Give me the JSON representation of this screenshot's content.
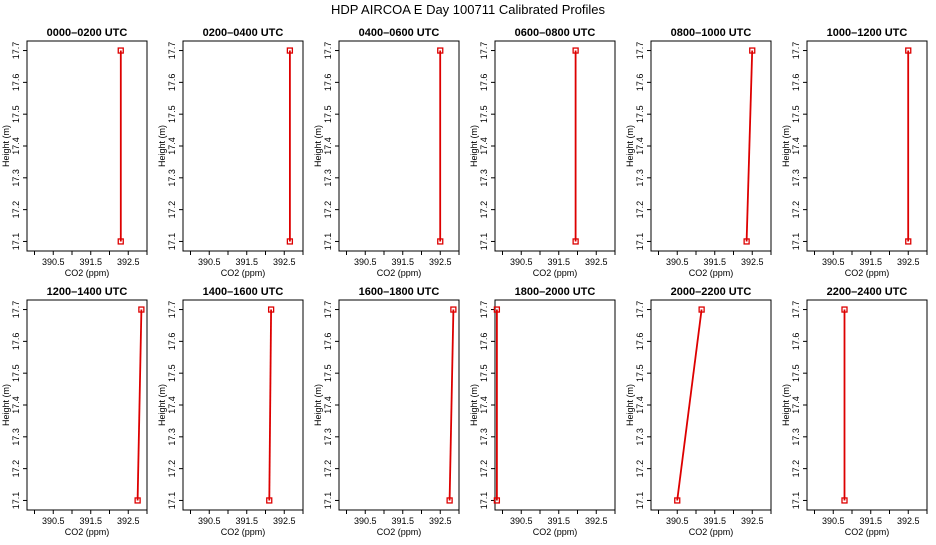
{
  "title": "HDP AIRCOA E  Day 100711  Calibrated Profiles",
  "style": {
    "line_color": "#dd0000",
    "marker_color": "#dd0000",
    "axis_color": "#000000"
  },
  "chart_data": [
    {
      "type": "line",
      "title": "0000–0200 UTC",
      "xlabel": "CO2 (ppm)",
      "ylabel": "Height (m)",
      "xlim": [
        389.8,
        393.0
      ],
      "ylim": [
        17.07,
        17.73
      ],
      "xticks": [
        "390.5",
        "391.5",
        "392.5"
      ],
      "xtick_values": [
        390.5,
        391.5,
        392.5
      ],
      "yticks": [
        "17.1",
        "17.2",
        "17.3",
        "17.4",
        "17.5",
        "17.6",
        "17.7"
      ],
      "ytick_values": [
        17.1,
        17.2,
        17.3,
        17.4,
        17.5,
        17.6,
        17.7
      ],
      "series": [
        {
          "x": [
            392.3,
            392.3
          ],
          "y": [
            17.1,
            17.7
          ]
        }
      ],
      "grid": false
    },
    {
      "type": "line",
      "title": "0200–0400 UTC",
      "xlabel": "CO2 (ppm)",
      "ylabel": "Height (m)",
      "xlim": [
        389.8,
        393.0
      ],
      "ylim": [
        17.07,
        17.73
      ],
      "xticks": [
        "390.5",
        "391.5",
        "392.5"
      ],
      "xtick_values": [
        390.5,
        391.5,
        392.5
      ],
      "yticks": [
        "17.1",
        "17.2",
        "17.3",
        "17.4",
        "17.5",
        "17.6",
        "17.7"
      ],
      "ytick_values": [
        17.1,
        17.2,
        17.3,
        17.4,
        17.5,
        17.6,
        17.7
      ],
      "series": [
        {
          "x": [
            392.65,
            392.65
          ],
          "y": [
            17.1,
            17.7
          ]
        }
      ],
      "grid": false
    },
    {
      "type": "line",
      "title": "0400–0600 UTC",
      "xlabel": "CO2 (ppm)",
      "ylabel": "Height (m)",
      "xlim": [
        389.8,
        393.0
      ],
      "ylim": [
        17.07,
        17.73
      ],
      "xticks": [
        "390.5",
        "391.5",
        "392.5"
      ],
      "xtick_values": [
        390.5,
        391.5,
        392.5
      ],
      "yticks": [
        "17.1",
        "17.2",
        "17.3",
        "17.4",
        "17.5",
        "17.6",
        "17.7"
      ],
      "ytick_values": [
        17.1,
        17.2,
        17.3,
        17.4,
        17.5,
        17.6,
        17.7
      ],
      "series": [
        {
          "x": [
            392.5,
            392.5
          ],
          "y": [
            17.1,
            17.7
          ]
        }
      ],
      "grid": false
    },
    {
      "type": "line",
      "title": "0600–0800 UTC",
      "xlabel": "CO2 (ppm)",
      "ylabel": "Height (m)",
      "xlim": [
        389.8,
        393.0
      ],
      "ylim": [
        17.07,
        17.73
      ],
      "xticks": [
        "390.5",
        "391.5",
        "392.5"
      ],
      "xtick_values": [
        390.5,
        391.5,
        392.5
      ],
      "yticks": [
        "17.1",
        "17.2",
        "17.3",
        "17.4",
        "17.5",
        "17.6",
        "17.7"
      ],
      "ytick_values": [
        17.1,
        17.2,
        17.3,
        17.4,
        17.5,
        17.6,
        17.7
      ],
      "series": [
        {
          "x": [
            391.95,
            391.95
          ],
          "y": [
            17.1,
            17.7
          ]
        }
      ],
      "grid": false
    },
    {
      "type": "line",
      "title": "0800–1000 UTC",
      "xlabel": "CO2 (ppm)",
      "ylabel": "Height (m)",
      "xlim": [
        389.8,
        393.0
      ],
      "ylim": [
        17.07,
        17.73
      ],
      "xticks": [
        "390.5",
        "391.5",
        "392.5"
      ],
      "xtick_values": [
        390.5,
        391.5,
        392.5
      ],
      "yticks": [
        "17.1",
        "17.2",
        "17.3",
        "17.4",
        "17.5",
        "17.6",
        "17.7"
      ],
      "ytick_values": [
        17.1,
        17.2,
        17.3,
        17.4,
        17.5,
        17.6,
        17.7
      ],
      "series": [
        {
          "x": [
            392.35,
            392.5
          ],
          "y": [
            17.1,
            17.7
          ]
        }
      ],
      "grid": false
    },
    {
      "type": "line",
      "title": "1000–1200 UTC",
      "xlabel": "CO2 (ppm)",
      "ylabel": "Height (m)",
      "xlim": [
        389.8,
        393.0
      ],
      "ylim": [
        17.07,
        17.73
      ],
      "xticks": [
        "390.5",
        "391.5",
        "392.5"
      ],
      "xtick_values": [
        390.5,
        391.5,
        392.5
      ],
      "yticks": [
        "17.1",
        "17.2",
        "17.3",
        "17.4",
        "17.5",
        "17.6",
        "17.7"
      ],
      "ytick_values": [
        17.1,
        17.2,
        17.3,
        17.4,
        17.5,
        17.6,
        17.7
      ],
      "series": [
        {
          "x": [
            392.5,
            392.5
          ],
          "y": [
            17.1,
            17.7
          ]
        }
      ],
      "grid": false
    },
    {
      "type": "line",
      "title": "1200–1400 UTC",
      "xlabel": "CO2 (ppm)",
      "ylabel": "Height (m)",
      "xlim": [
        389.8,
        393.0
      ],
      "ylim": [
        17.07,
        17.73
      ],
      "xticks": [
        "390.5",
        "391.5",
        "392.5"
      ],
      "xtick_values": [
        390.5,
        391.5,
        392.5
      ],
      "yticks": [
        "17.1",
        "17.2",
        "17.3",
        "17.4",
        "17.5",
        "17.6",
        "17.7"
      ],
      "ytick_values": [
        17.1,
        17.2,
        17.3,
        17.4,
        17.5,
        17.6,
        17.7
      ],
      "series": [
        {
          "x": [
            392.75,
            392.85
          ],
          "y": [
            17.1,
            17.7
          ]
        }
      ],
      "grid": false
    },
    {
      "type": "line",
      "title": "1400–1600 UTC",
      "xlabel": "CO2 (ppm)",
      "ylabel": "Height (m)",
      "xlim": [
        389.8,
        393.0
      ],
      "ylim": [
        17.07,
        17.73
      ],
      "xticks": [
        "390.5",
        "391.5",
        "392.5"
      ],
      "xtick_values": [
        390.5,
        391.5,
        392.5
      ],
      "yticks": [
        "17.1",
        "17.2",
        "17.3",
        "17.4",
        "17.5",
        "17.6",
        "17.7"
      ],
      "ytick_values": [
        17.1,
        17.2,
        17.3,
        17.4,
        17.5,
        17.6,
        17.7
      ],
      "series": [
        {
          "x": [
            392.1,
            392.15
          ],
          "y": [
            17.1,
            17.7
          ]
        }
      ],
      "grid": false
    },
    {
      "type": "line",
      "title": "1600–1800 UTC",
      "xlabel": "CO2 (ppm)",
      "ylabel": "Height (m)",
      "xlim": [
        389.8,
        393.0
      ],
      "ylim": [
        17.07,
        17.73
      ],
      "xticks": [
        "390.5",
        "391.5",
        "392.5"
      ],
      "xtick_values": [
        390.5,
        391.5,
        392.5
      ],
      "yticks": [
        "17.1",
        "17.2",
        "17.3",
        "17.4",
        "17.5",
        "17.6",
        "17.7"
      ],
      "ytick_values": [
        17.1,
        17.2,
        17.3,
        17.4,
        17.5,
        17.6,
        17.7
      ],
      "series": [
        {
          "x": [
            392.75,
            392.85
          ],
          "y": [
            17.1,
            17.7
          ]
        }
      ],
      "grid": false
    },
    {
      "type": "line",
      "title": "1800–2000 UTC",
      "xlabel": "CO2 (ppm)",
      "ylabel": "Height (m)",
      "xlim": [
        389.8,
        393.0
      ],
      "ylim": [
        17.07,
        17.73
      ],
      "xticks": [
        "390.5",
        "391.5",
        "392.5"
      ],
      "xtick_values": [
        390.5,
        391.5,
        392.5
      ],
      "yticks": [
        "17.1",
        "17.2",
        "17.3",
        "17.4",
        "17.5",
        "17.6",
        "17.7"
      ],
      "ytick_values": [
        17.1,
        17.2,
        17.3,
        17.4,
        17.5,
        17.6,
        17.7
      ],
      "series": [
        {
          "x": [
            389.85,
            389.85
          ],
          "y": [
            17.1,
            17.7
          ]
        }
      ],
      "grid": false
    },
    {
      "type": "line",
      "title": "2000–2200 UTC",
      "xlabel": "CO2 (ppm)",
      "ylabel": "Height (m)",
      "xlim": [
        389.8,
        393.0
      ],
      "ylim": [
        17.07,
        17.73
      ],
      "xticks": [
        "390.5",
        "391.5",
        "392.5"
      ],
      "xtick_values": [
        390.5,
        391.5,
        392.5
      ],
      "yticks": [
        "17.1",
        "17.2",
        "17.3",
        "17.4",
        "17.5",
        "17.6",
        "17.7"
      ],
      "ytick_values": [
        17.1,
        17.2,
        17.3,
        17.4,
        17.5,
        17.6,
        17.7
      ],
      "series": [
        {
          "x": [
            390.5,
            391.15
          ],
          "y": [
            17.1,
            17.7
          ]
        }
      ],
      "grid": false
    },
    {
      "type": "line",
      "title": "2200–2400 UTC",
      "xlabel": "CO2 (ppm)",
      "ylabel": "Height (m)",
      "xlim": [
        389.8,
        393.0
      ],
      "ylim": [
        17.07,
        17.73
      ],
      "xticks": [
        "390.5",
        "391.5",
        "392.5"
      ],
      "xtick_values": [
        390.5,
        391.5,
        392.5
      ],
      "yticks": [
        "17.1",
        "17.2",
        "17.3",
        "17.4",
        "17.5",
        "17.6",
        "17.7"
      ],
      "ytick_values": [
        17.1,
        17.2,
        17.3,
        17.4,
        17.5,
        17.6,
        17.7
      ],
      "series": [
        {
          "x": [
            390.8,
            390.8
          ],
          "y": [
            17.1,
            17.7
          ]
        }
      ],
      "grid": false
    }
  ]
}
